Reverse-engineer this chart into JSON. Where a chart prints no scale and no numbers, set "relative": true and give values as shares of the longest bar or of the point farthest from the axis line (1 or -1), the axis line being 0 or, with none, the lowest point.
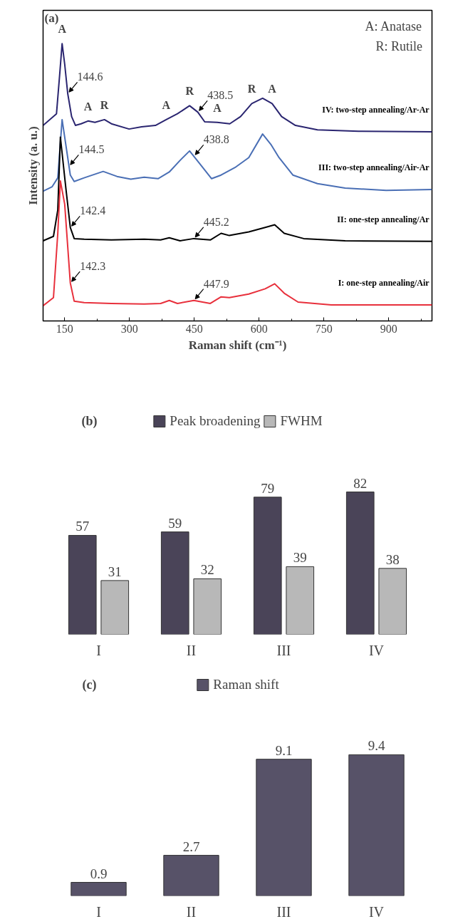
{
  "chart_data": [
    {
      "type": "line",
      "title": "(a)",
      "xlabel": "Raman shift (cm⁻¹)",
      "ylabel": "Intensity (a. u.)",
      "relative": true,
      "xlim": [
        100,
        1000
      ],
      "xticks": [
        150,
        300,
        450,
        600,
        750,
        900
      ],
      "grid": false,
      "line_style": "solid",
      "series": [
        {
          "name": "IV: two-step annealing/Ar-Ar",
          "color": "#2a2570",
          "x": [
            100,
            131,
            139,
            144,
            150,
            157,
            166,
            175,
            188,
            204,
            220,
            242,
            258,
            299,
            328,
            360,
            385,
            411,
            439,
            458,
            474,
            503,
            532,
            557,
            583,
            608,
            630,
            652,
            684,
            735,
            830,
            1000
          ],
          "values": [
            0.705,
            0.747,
            0.9,
            1.0,
            0.926,
            0.82,
            0.737,
            0.705,
            0.711,
            0.721,
            0.716,
            0.726,
            0.711,
            0.692,
            0.7,
            0.705,
            0.726,
            0.747,
            0.776,
            0.753,
            0.718,
            0.716,
            0.711,
            0.737,
            0.784,
            0.803,
            0.784,
            0.737,
            0.705,
            0.689,
            0.684,
            0.682
          ]
        },
        {
          "name": "III: two-step annealing/Air-Ar",
          "color": "#4a6fb5",
          "x": [
            100,
            121,
            134,
            144,
            163,
            172,
            195,
            239,
            271,
            303,
            334,
            366,
            392,
            417,
            439,
            462,
            490,
            512,
            544,
            576,
            608,
            627,
            646,
            678,
            735,
            799,
            894,
            1000
          ],
          "values": [
            0.468,
            0.484,
            0.516,
            0.726,
            0.526,
            0.503,
            0.516,
            0.539,
            0.521,
            0.511,
            0.518,
            0.513,
            0.537,
            0.579,
            0.613,
            0.568,
            0.513,
            0.526,
            0.553,
            0.589,
            0.674,
            0.637,
            0.589,
            0.526,
            0.495,
            0.479,
            0.471,
            0.474
          ]
        },
        {
          "name": "II: one-step annealing/Ar",
          "color": "#000000",
          "x": [
            100,
            124,
            134,
            140,
            153,
            163,
            172,
            195,
            258,
            334,
            372,
            392,
            417,
            449,
            487,
            512,
            531,
            576,
            614,
            636,
            658,
            703,
            799,
            1000
          ],
          "values": [
            0.289,
            0.305,
            0.4,
            0.663,
            0.474,
            0.337,
            0.297,
            0.295,
            0.292,
            0.295,
            0.292,
            0.3,
            0.289,
            0.297,
            0.292,
            0.316,
            0.308,
            0.321,
            0.337,
            0.347,
            0.316,
            0.297,
            0.289,
            0.287
          ]
        },
        {
          "name": "I: one-step annealing/Air",
          "color": "#e8303c",
          "x": [
            100,
            124,
            134,
            140,
            150,
            163,
            172,
            195,
            258,
            334,
            372,
            392,
            411,
            449,
            487,
            512,
            531,
            576,
            614,
            636,
            658,
            690,
            767,
            1000
          ],
          "values": [
            0.055,
            0.084,
            0.316,
            0.505,
            0.421,
            0.137,
            0.071,
            0.066,
            0.063,
            0.061,
            0.063,
            0.074,
            0.063,
            0.074,
            0.063,
            0.087,
            0.084,
            0.097,
            0.116,
            0.134,
            0.1,
            0.068,
            0.058,
            0.058
          ]
        }
      ],
      "annotations": [
        "A: Anatase",
        "R: Rutile",
        {
          "text": "A",
          "x": 144,
          "y": 1.0
        },
        {
          "text": "A",
          "x": 204,
          "y": 0.721
        },
        {
          "text": "R",
          "x": 242,
          "y": 0.726
        },
        {
          "text": "A",
          "x": 385,
          "y": 0.726
        },
        {
          "text": "R",
          "x": 439,
          "y": 0.776
        },
        {
          "text": "A",
          "x": 503,
          "y": 0.716
        },
        {
          "text": "R",
          "x": 583,
          "y": 0.784
        },
        {
          "text": "A",
          "x": 630,
          "y": 0.784
        },
        {
          "text": "144.6",
          "x": 157,
          "y": 0.82
        },
        {
          "text": "438.5",
          "x": 458,
          "y": 0.753
        },
        {
          "text": "144.5",
          "x": 160,
          "y": 0.558
        },
        {
          "text": "438.8",
          "x": 449,
          "y": 0.594
        },
        {
          "text": "142.4",
          "x": 163,
          "y": 0.337
        },
        {
          "text": "445.2",
          "x": 449,
          "y": 0.297
        },
        {
          "text": "142.3",
          "x": 163,
          "y": 0.137
        },
        {
          "text": "447.9",
          "x": 449,
          "y": 0.074
        }
      ]
    },
    {
      "type": "bar",
      "title": "(b)",
      "categories": [
        "I",
        "II",
        "III",
        "IV"
      ],
      "legend": "top",
      "data_labels": true,
      "tick_labels": "x",
      "grid": false,
      "series": [
        {
          "name": "Peak broadening",
          "color": "#4a4458",
          "values": [
            57,
            59,
            79,
            82
          ]
        },
        {
          "name": "FWHM",
          "color": "#b8b8b8",
          "values": [
            31,
            32,
            39,
            38
          ]
        }
      ]
    },
    {
      "type": "bar",
      "title": "(c)",
      "categories": [
        "I",
        "II",
        "III",
        "IV"
      ],
      "legend": "top",
      "data_labels": true,
      "tick_labels": "x",
      "grid": false,
      "series": [
        {
          "name": "Raman shift",
          "color": "#575268",
          "values": [
            0.9,
            2.7,
            9.1,
            9.4
          ]
        }
      ]
    }
  ]
}
